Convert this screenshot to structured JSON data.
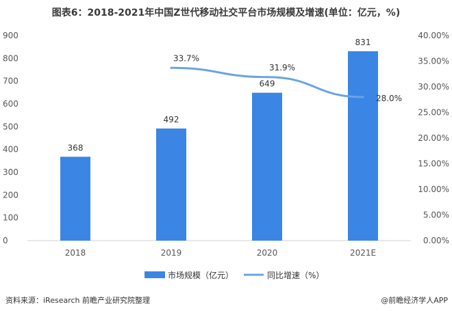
{
  "source_text": "资料来源：iResearch 前瞻产业研究院整理",
  "credit_text": "@前瞻经济学人APP",
  "colors": {
    "bar": "#3b86e4",
    "line": "#6aa3e6",
    "axis": "#d0d0d0"
  },
  "chart_data": {
    "type": "bar",
    "title": "图表6：2018-2021年中国Z世代移动社交平台市场规模及增速(单位：亿元，%)",
    "categories": [
      "2018",
      "2019",
      "2020",
      "2021E"
    ],
    "series": [
      {
        "name": "市场规模（亿元）",
        "type": "bar",
        "axis": "left",
        "values": [
          368,
          492,
          649,
          831
        ],
        "labels": [
          "368",
          "492",
          "649",
          "831"
        ]
      },
      {
        "name": "同比增速（%）",
        "type": "line",
        "axis": "right",
        "values": [
          null,
          33.7,
          31.9,
          28.0
        ],
        "labels": [
          "",
          "33.7%",
          "31.9%",
          "28.0%"
        ]
      }
    ],
    "y_left": {
      "min": 0,
      "max": 900,
      "step": 100,
      "ticks": [
        "0",
        "100",
        "200",
        "300",
        "400",
        "500",
        "600",
        "700",
        "800",
        "900"
      ]
    },
    "y_right": {
      "min": 0,
      "max": 40,
      "step": 5,
      "ticks": [
        "0.00%",
        "5.00%",
        "10.00%",
        "15.00%",
        "20.00%",
        "25.00%",
        "30.00%",
        "35.00%",
        "40.00%"
      ]
    },
    "legend": "bottom",
    "grid": false
  }
}
